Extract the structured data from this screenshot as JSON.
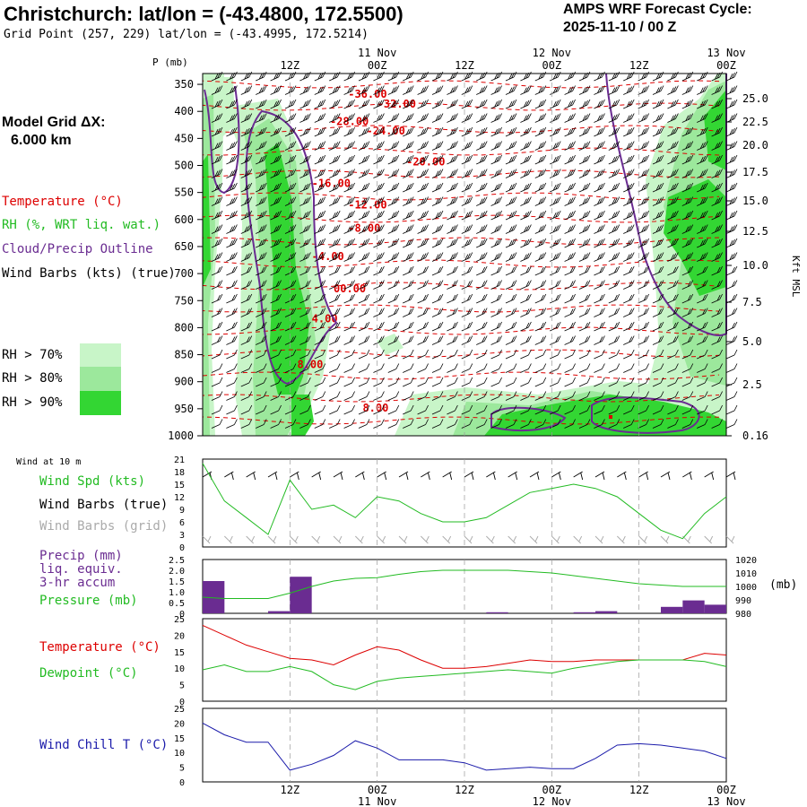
{
  "header": {
    "title": "Christchurch:  lat/lon = (-43.4800, 172.5500)",
    "subtitle": "Grid Point (257, 229) lat/lon = (-43.4995, 172.5214)",
    "cycle_line1": "AMPS WRF Forecast Cycle:",
    "cycle_line2": "2025-11-10 / 00  Z"
  },
  "time_axis": {
    "ticks": [
      "12Z",
      "00Z",
      "12Z",
      "00Z",
      "12Z",
      "00Z"
    ],
    "dates": [
      "11 Nov",
      "12 Nov",
      "13 Nov"
    ]
  },
  "left_legend": {
    "model_grid_label": "Model Grid ΔX:",
    "model_grid_value": "6.000 km",
    "temperature": "Temperature (°C)",
    "rh": "RH (%, WRT liq. wat.)",
    "cloud": "Cloud/Precip Outline",
    "wind": "Wind Barbs (kts) (true)",
    "rh70": "RH > 70%",
    "rh80": "RH > 80%",
    "rh90": "RH > 90%"
  },
  "colors": {
    "temperature": "#dd0000",
    "rh70": "#c8f5c8",
    "rh80": "#9ce89c",
    "rh90": "#33d633",
    "cloud": "#6a2c91",
    "wind_speed": "#22bb22",
    "wind_barb_grid": "#aaaaaa",
    "precip": "#6a2c91",
    "dewpoint": "#22bb22",
    "wind_chill": "#1a1aaa"
  },
  "chart_data": [
    {
      "type": "heatmap",
      "title": "Cross-section: Temperature, RH, Cloud/Precip, Wind",
      "ylabel_left": "P (mb)",
      "ylabel_right": "Kft MSL",
      "y_ticks_left": [
        350,
        400,
        450,
        500,
        550,
        600,
        650,
        700,
        750,
        800,
        850,
        900,
        950,
        1000
      ],
      "y_ticks_right": [
        "25.0",
        "22.5",
        "20.0",
        "17.5",
        "15.0",
        "12.5",
        "10.0",
        "7.5",
        "5.0",
        "2.5",
        "0.16"
      ],
      "temperature_contours": [
        {
          "label": "-36.00",
          "t": 20,
          "p": 375
        },
        {
          "label": "-32.00",
          "t": 24,
          "p": 393
        },
        {
          "label": "-28.00",
          "t": 17.5,
          "p": 425
        },
        {
          "label": "-24.00",
          "t": 22.5,
          "p": 443
        },
        {
          "label": "-20.00",
          "t": 28,
          "p": 500
        },
        {
          "label": "-16.00",
          "t": 15,
          "p": 540
        },
        {
          "label": "-12.00",
          "t": 20,
          "p": 580
        },
        {
          "label": "-8.00",
          "t": 20,
          "p": 623
        },
        {
          "label": "-4.00",
          "t": 15,
          "p": 675
        },
        {
          "label": "00.00",
          "t": 18,
          "p": 735
        },
        {
          "label": "4.00",
          "t": 15,
          "p": 790
        },
        {
          "label": "8.00",
          "t": 13,
          "p": 875
        },
        {
          "label": "8.00",
          "t": 22,
          "p": 955
        }
      ]
    },
    {
      "type": "line",
      "title": "Wind at 10 m",
      "series_labels": [
        "Wind Spd (kts)",
        "Wind Barbs (true)",
        "Wind Barbs (grid)"
      ],
      "x_hours": [
        0,
        3,
        6,
        9,
        12,
        15,
        18,
        21,
        24,
        27,
        30,
        33,
        36,
        39,
        42,
        45,
        48,
        51,
        54,
        57,
        60,
        63,
        66,
        69,
        72
      ],
      "wind_speed_kts": [
        20,
        11,
        7,
        3,
        16,
        9,
        10,
        7,
        12,
        11,
        8,
        6,
        6,
        7,
        10,
        13,
        14,
        15,
        14,
        12,
        8,
        4,
        2,
        8,
        12
      ],
      "y_ticks": [
        0,
        3,
        6,
        9,
        12,
        15,
        18,
        21
      ],
      "ylim": [
        0,
        21
      ]
    },
    {
      "type": "bar",
      "title": "Precip / Pressure",
      "series_labels": [
        "Precip (mm)",
        "liq. equiv.",
        "3-hr accum",
        "Pressure (mb)"
      ],
      "precip_bins": [
        {
          "start": 0,
          "end": 3,
          "value": 1.5
        },
        {
          "start": 9,
          "end": 12,
          "value": 0.1
        },
        {
          "start": 12,
          "end": 15,
          "value": 1.7
        },
        {
          "start": 39,
          "end": 42,
          "value": 0.05
        },
        {
          "start": 51,
          "end": 54,
          "value": 0.05
        },
        {
          "start": 54,
          "end": 57,
          "value": 0.1
        },
        {
          "start": 63,
          "end": 66,
          "value": 0.3
        },
        {
          "start": 66,
          "end": 69,
          "value": 0.6
        },
        {
          "start": 69,
          "end": 72,
          "value": 0.4
        }
      ],
      "pressure_x": [
        0,
        3,
        6,
        9,
        12,
        15,
        18,
        21,
        24,
        27,
        30,
        33,
        36,
        39,
        42,
        45,
        48,
        51,
        54,
        57,
        60,
        63,
        66,
        69,
        72
      ],
      "pressure_mb": [
        992,
        991,
        991,
        991,
        995,
        1000,
        1004,
        1006,
        1006.5,
        1009,
        1011,
        1012,
        1012,
        1012,
        1012,
        1011,
        1010,
        1008,
        1006,
        1004,
        1002,
        1001,
        1000,
        1000,
        1000
      ],
      "precip_ylim": [
        0,
        2.5
      ],
      "precip_ticks": [
        "0",
        "0.5",
        "1.0",
        "1.5",
        "2.0",
        "2.5"
      ],
      "pressure_ylim": [
        980,
        1020
      ],
      "pressure_ticks": [
        "980",
        "990",
        "1000",
        "1010",
        "1020"
      ],
      "pressure_unit": "(mb)"
    },
    {
      "type": "line",
      "title": "Temperature / Dewpoint",
      "series": [
        {
          "name": "Temperature (°C)",
          "x": [
            0,
            3,
            6,
            9,
            12,
            15,
            18,
            21,
            24,
            27,
            30,
            33,
            36,
            39,
            42,
            45,
            48,
            51,
            54,
            57,
            60,
            63,
            66,
            69,
            72
          ],
          "values": [
            23,
            20,
            17,
            15,
            13,
            12.5,
            11,
            14,
            16.5,
            15.5,
            12.5,
            10,
            10,
            10.5,
            11.5,
            12.5,
            12,
            12,
            12.5,
            12.5,
            12.5,
            12.5,
            12.5,
            14.5,
            14
          ]
        },
        {
          "name": "Dewpoint (°C)",
          "x": [
            0,
            3,
            6,
            9,
            12,
            15,
            18,
            21,
            24,
            27,
            30,
            33,
            36,
            39,
            42,
            45,
            48,
            51,
            54,
            57,
            60,
            63,
            66,
            69,
            72
          ],
          "values": [
            9.5,
            11,
            9,
            9,
            10.5,
            9,
            5,
            3.5,
            6,
            7,
            7.5,
            8,
            8.5,
            9,
            9.5,
            9,
            8.5,
            10,
            11,
            12,
            12.5,
            12.5,
            12.5,
            12,
            10.5
          ]
        }
      ],
      "y_ticks": [
        0,
        5,
        10,
        15,
        20,
        25
      ],
      "ylim": [
        0,
        25
      ]
    },
    {
      "type": "line",
      "title": "Wind Chill",
      "series": [
        {
          "name": "Wind Chill T (°C)",
          "x": [
            0,
            3,
            6,
            9,
            12,
            15,
            18,
            21,
            24,
            27,
            30,
            33,
            36,
            39,
            42,
            45,
            48,
            51,
            54,
            57,
            60,
            63,
            66,
            69,
            72
          ],
          "values": [
            20,
            16,
            13.5,
            13.5,
            4,
            6,
            9,
            14,
            11.5,
            7.5,
            7.5,
            7.5,
            6.5,
            4,
            4.5,
            5,
            4.5,
            4.5,
            8,
            12.5,
            13,
            12.5,
            11.5,
            10.5,
            8
          ]
        }
      ],
      "y_ticks": [
        0,
        5,
        10,
        15,
        20,
        25
      ],
      "ylim": [
        0,
        25
      ]
    }
  ]
}
